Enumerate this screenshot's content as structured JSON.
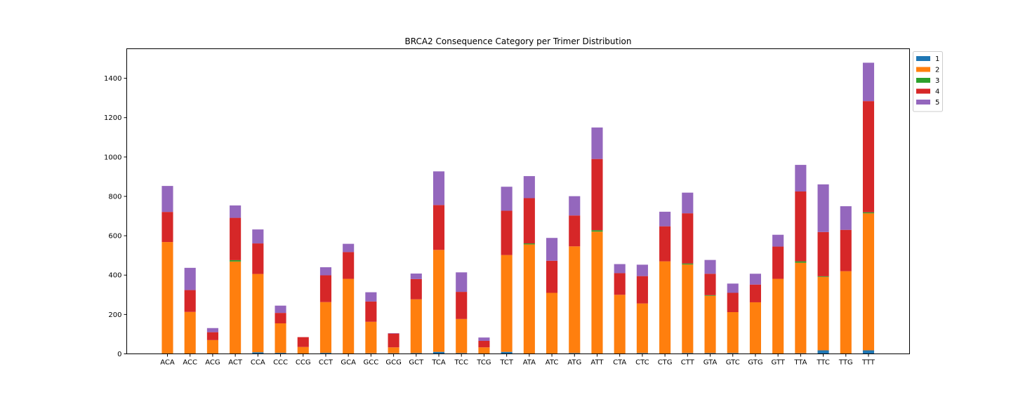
{
  "chart_data": {
    "type": "bar",
    "stacked": true,
    "title": "BRCA2 Consequence Category per Trimer Distribution",
    "xlabel": "",
    "ylabel": "",
    "ylim": [
      0,
      1550
    ],
    "yticks": [
      0,
      200,
      400,
      600,
      800,
      1000,
      1200,
      1400
    ],
    "grid": false,
    "legend_position": "upper-right-outside",
    "categories": [
      "ACA",
      "ACC",
      "ACG",
      "ACT",
      "CCA",
      "CCC",
      "CCG",
      "CCT",
      "GCA",
      "GCC",
      "GCG",
      "GCT",
      "TCA",
      "TCC",
      "TCG",
      "TCT",
      "ATA",
      "ATC",
      "ATG",
      "ATT",
      "CTA",
      "CTC",
      "CTG",
      "CTT",
      "GTA",
      "GTC",
      "GTG",
      "GTT",
      "TTA",
      "TTC",
      "TTG",
      "TTT"
    ],
    "series": [
      {
        "name": "1",
        "color": "#1f77b4",
        "values": [
          2,
          0,
          0,
          0,
          8,
          5,
          0,
          5,
          0,
          3,
          3,
          4,
          10,
          4,
          0,
          10,
          0,
          0,
          4,
          0,
          0,
          4,
          0,
          4,
          4,
          4,
          0,
          0,
          3,
          18,
          0,
          18
        ]
      },
      {
        "name": "2",
        "color": "#ff7f0e",
        "values": [
          566,
          213,
          70,
          469,
          398,
          150,
          35,
          258,
          381,
          160,
          30,
          273,
          518,
          173,
          33,
          492,
          556,
          310,
          542,
          621,
          300,
          252,
          470,
          450,
          291,
          208,
          262,
          381,
          460,
          373,
          420,
          696
        ]
      },
      {
        "name": "3",
        "color": "#2ca02c",
        "values": [
          0,
          0,
          0,
          7,
          0,
          0,
          0,
          0,
          0,
          0,
          0,
          0,
          0,
          0,
          0,
          0,
          5,
          0,
          0,
          7,
          0,
          0,
          0,
          5,
          3,
          0,
          0,
          0,
          7,
          3,
          0,
          5
        ]
      },
      {
        "name": "4",
        "color": "#d62728",
        "values": [
          153,
          111,
          40,
          215,
          155,
          53,
          50,
          136,
          136,
          103,
          70,
          103,
          228,
          138,
          33,
          225,
          230,
          163,
          157,
          362,
          110,
          139,
          178,
          255,
          109,
          98,
          90,
          164,
          355,
          225,
          210,
          565
        ]
      },
      {
        "name": "5",
        "color": "#9467bd",
        "values": [
          132,
          113,
          21,
          63,
          71,
          37,
          0,
          41,
          42,
          47,
          2,
          28,
          171,
          99,
          17,
          122,
          112,
          116,
          98,
          160,
          46,
          58,
          74,
          105,
          70,
          47,
          55,
          60,
          135,
          242,
          120,
          195
        ]
      }
    ]
  }
}
